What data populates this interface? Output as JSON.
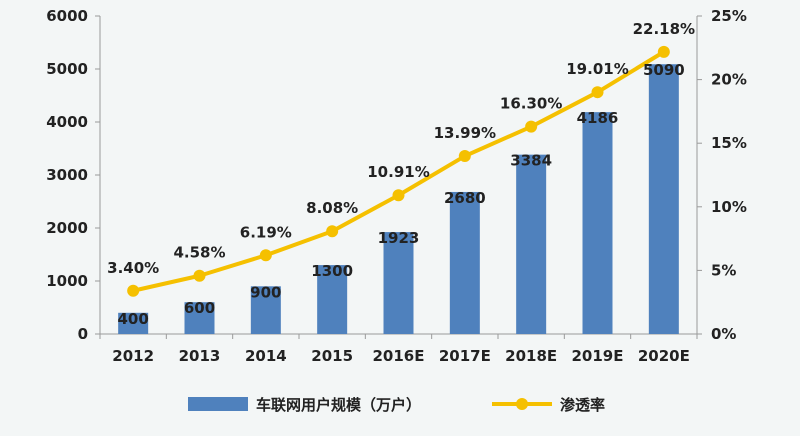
{
  "chart_data": {
    "type": "bar",
    "categories": [
      "2012",
      "2013",
      "2014",
      "2015",
      "2016E",
      "2017E",
      "2018E",
      "2019E",
      "2020E"
    ],
    "series": [
      {
        "name": "车联网用户规模（万户）",
        "type": "bar",
        "axis": "left",
        "values": [
          400,
          600,
          900,
          1300,
          1923,
          2680,
          3384,
          4186,
          5090
        ],
        "labels": [
          "400",
          "600",
          "900",
          "1300",
          "1923",
          "2680",
          "3384",
          "4186",
          "5090"
        ],
        "color": "#4f81bd"
      },
      {
        "name": "渗透率",
        "type": "line",
        "axis": "right",
        "values": [
          3.4,
          4.58,
          6.19,
          8.08,
          10.91,
          13.99,
          16.3,
          19.01,
          22.18
        ],
        "labels": [
          "3.40%",
          "4.58%",
          "6.19%",
          "8.08%",
          "10.91%",
          "13.99%",
          "16.30%",
          "19.01%",
          "22.18%"
        ],
        "color": "#f5c000"
      }
    ],
    "y_left": {
      "range": [
        0,
        6000
      ],
      "ticks": [
        "0",
        "1000",
        "2000",
        "3000",
        "4000",
        "5000",
        "6000"
      ]
    },
    "y_right": {
      "range": [
        0,
        25
      ],
      "ticks": [
        "0%",
        "5%",
        "10%",
        "15%",
        "20%",
        "25%"
      ]
    },
    "grid": false,
    "legend": "bottom"
  }
}
